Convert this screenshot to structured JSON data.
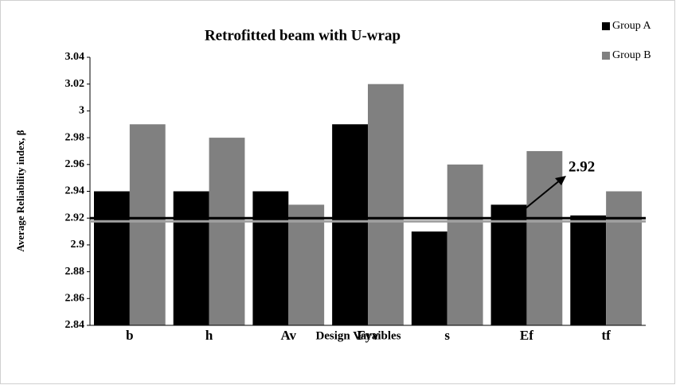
{
  "chart_data": {
    "type": "bar",
    "title": "Retrofitted beam with U-wrap",
    "xlabel": "Design Varaibles",
    "ylabel": "Average Reliability index, β",
    "categories": [
      "b",
      "h",
      "Av",
      "Fyv",
      "s",
      "Ef",
      "tf"
    ],
    "series": [
      {
        "name": "Group A",
        "color": "#000000",
        "values": [
          2.94,
          2.94,
          2.94,
          2.99,
          2.91,
          2.93,
          2.922
        ]
      },
      {
        "name": "Group B",
        "color": "#808080",
        "values": [
          2.99,
          2.98,
          2.93,
          3.02,
          2.96,
          2.97,
          2.94
        ]
      }
    ],
    "ylim": [
      2.84,
      3.04
    ],
    "yticks": [
      2.84,
      2.86,
      2.88,
      2.9,
      2.92,
      2.94,
      2.96,
      2.98,
      3,
      3.02,
      3.04
    ],
    "reference_line": 2.92,
    "legend": "top-right",
    "grid": false
  }
}
